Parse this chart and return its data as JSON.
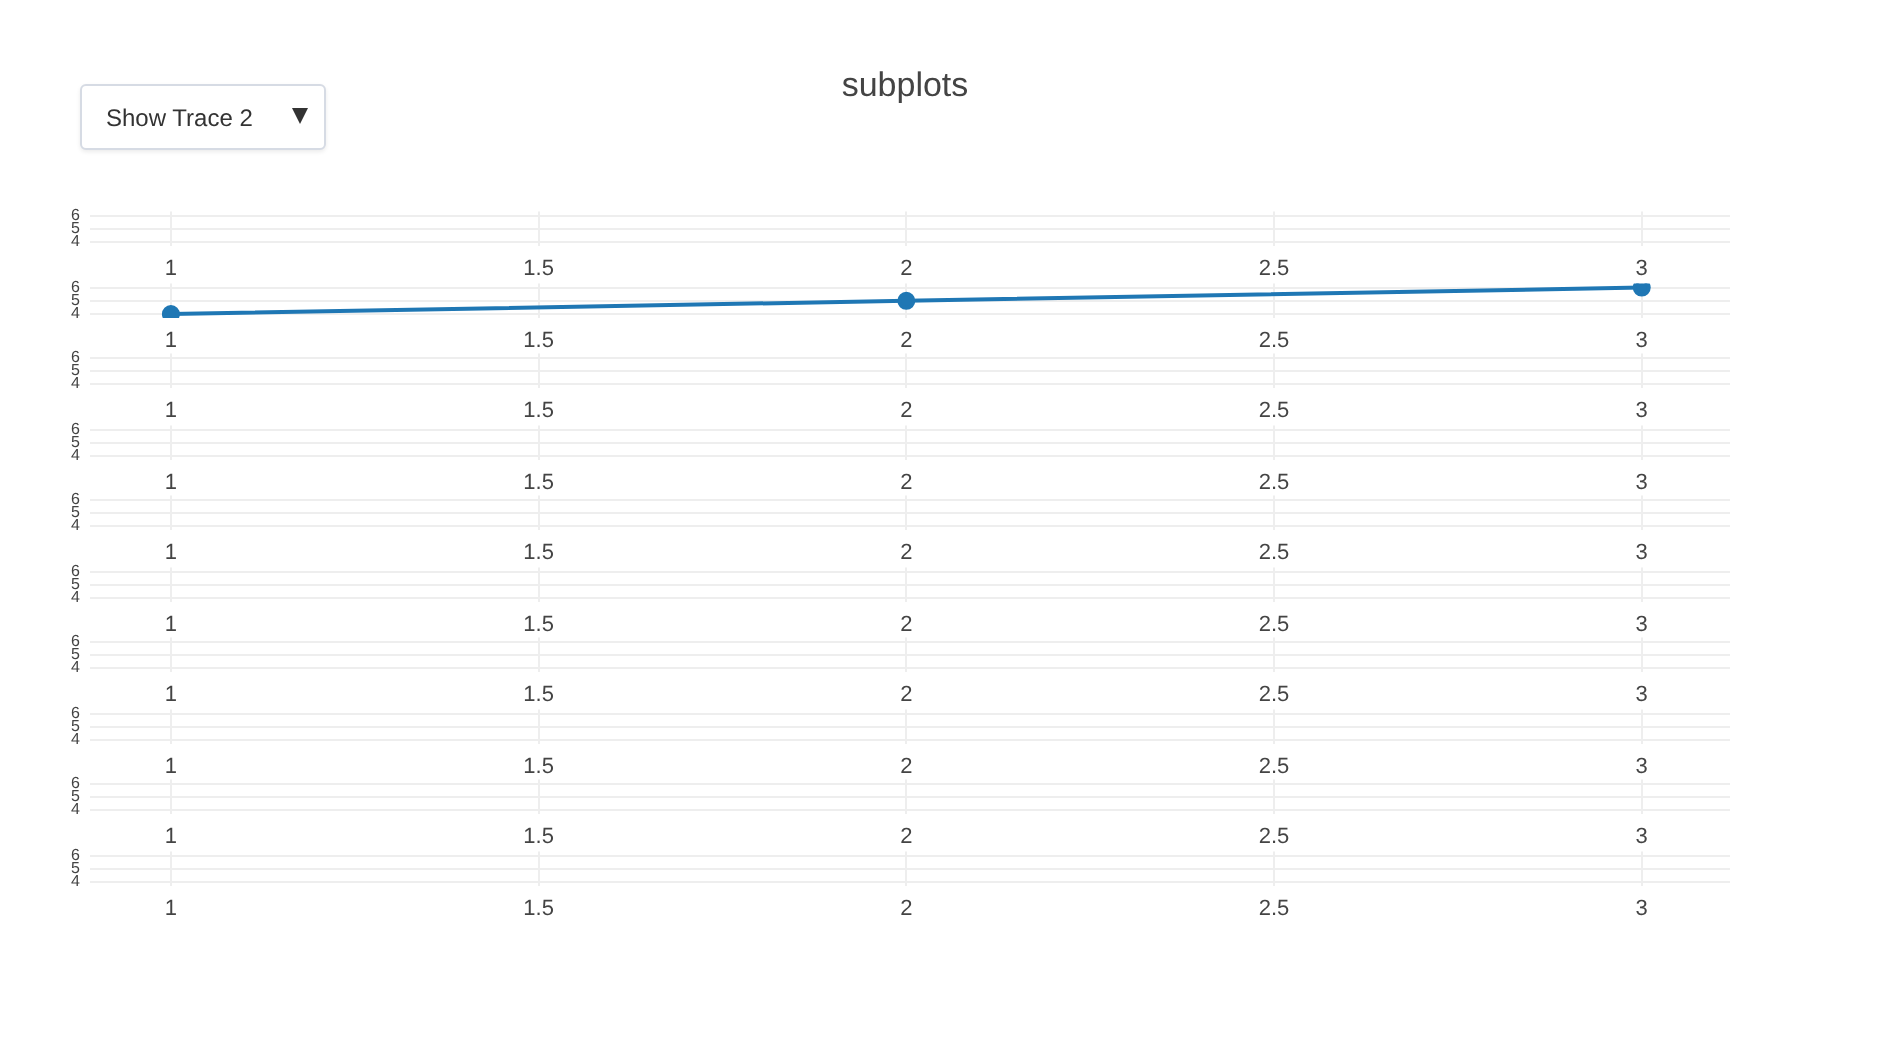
{
  "chart_data": [
    {
      "type": "line",
      "title": "subplots",
      "annotations": [
        "Show Trace 2"
      ],
      "xlim": [
        0.89,
        3.12
      ],
      "xticks": [
        1,
        1.5,
        2,
        2.5,
        3
      ],
      "ylim": [
        3.7,
        6.3
      ],
      "yticks": [
        4,
        5,
        6
      ],
      "grid": true
    },
    {
      "type": "line",
      "x": [
        1,
        2,
        3
      ],
      "series": [
        {
          "color": "#1f77b4",
          "values": [
            4,
            5,
            6
          ]
        }
      ],
      "marker": "circle",
      "line_style": "solid",
      "xlim": [
        0.89,
        3.12
      ],
      "xticks": [
        1,
        1.5,
        2,
        2.5,
        3
      ],
      "ylim": [
        3.7,
        6.3
      ],
      "yticks": [
        4,
        5,
        6
      ],
      "grid": true
    },
    {
      "type": "line",
      "xlim": [
        0.89,
        3.12
      ],
      "xticks": [
        1,
        1.5,
        2,
        2.5,
        3
      ],
      "ylim": [
        3.7,
        6.3
      ],
      "yticks": [
        4,
        5,
        6
      ],
      "grid": true
    },
    {
      "type": "line",
      "xlim": [
        0.89,
        3.12
      ],
      "xticks": [
        1,
        1.5,
        2,
        2.5,
        3
      ],
      "ylim": [
        3.7,
        6.3
      ],
      "yticks": [
        4,
        5,
        6
      ],
      "grid": true
    },
    {
      "type": "line",
      "xlim": [
        0.89,
        3.12
      ],
      "xticks": [
        1,
        1.5,
        2,
        2.5,
        3
      ],
      "ylim": [
        3.7,
        6.3
      ],
      "yticks": [
        4,
        5,
        6
      ],
      "grid": true
    },
    {
      "type": "line",
      "xlim": [
        0.89,
        3.12
      ],
      "xticks": [
        1,
        1.5,
        2,
        2.5,
        3
      ],
      "ylim": [
        3.7,
        6.3
      ],
      "yticks": [
        4,
        5,
        6
      ],
      "grid": true
    },
    {
      "type": "line",
      "xlim": [
        0.89,
        3.12
      ],
      "xticks": [
        1,
        1.5,
        2,
        2.5,
        3
      ],
      "ylim": [
        3.7,
        6.3
      ],
      "yticks": [
        4,
        5,
        6
      ],
      "grid": true
    },
    {
      "type": "line",
      "xlim": [
        0.89,
        3.12
      ],
      "xticks": [
        1,
        1.5,
        2,
        2.5,
        3
      ],
      "ylim": [
        3.7,
        6.3
      ],
      "yticks": [
        4,
        5,
        6
      ],
      "grid": true
    },
    {
      "type": "line",
      "xlim": [
        0.89,
        3.12
      ],
      "xticks": [
        1,
        1.5,
        2,
        2.5,
        3
      ],
      "ylim": [
        3.7,
        6.3
      ],
      "yticks": [
        4,
        5,
        6
      ],
      "grid": true
    },
    {
      "type": "line",
      "xlim": [
        0.89,
        3.12
      ],
      "xticks": [
        1,
        1.5,
        2,
        2.5,
        3
      ],
      "ylim": [
        3.7,
        6.3
      ],
      "yticks": [
        4,
        5,
        6
      ],
      "grid": true
    }
  ]
}
